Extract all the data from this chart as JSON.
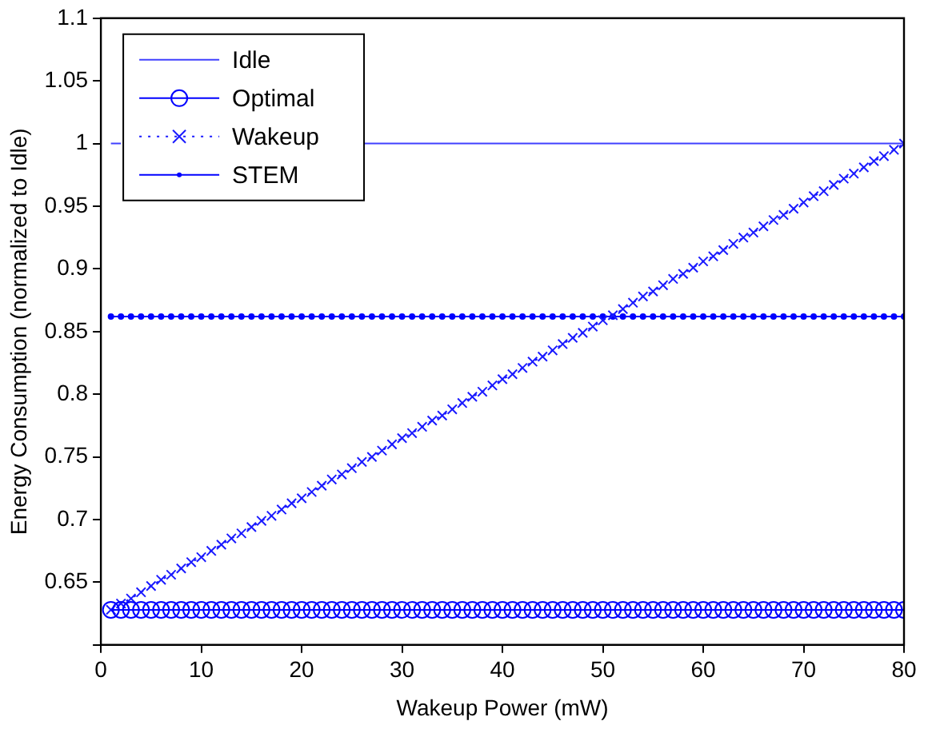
{
  "chart_data": {
    "type": "line",
    "xlabel": "Wakeup Power (mW)",
    "ylabel": "Energy Consumption (normalized to Idle)",
    "x": [
      1,
      2,
      3,
      4,
      5,
      6,
      7,
      8,
      9,
      10,
      11,
      12,
      13,
      14,
      15,
      16,
      17,
      18,
      19,
      20,
      21,
      22,
      23,
      24,
      25,
      26,
      27,
      28,
      29,
      30,
      31,
      32,
      33,
      34,
      35,
      36,
      37,
      38,
      39,
      40,
      41,
      42,
      43,
      44,
      45,
      46,
      47,
      48,
      49,
      50,
      51,
      52,
      53,
      54,
      55,
      56,
      57,
      58,
      59,
      60,
      61,
      62,
      63,
      64,
      65,
      66,
      67,
      68,
      69,
      70,
      71,
      72,
      73,
      74,
      75,
      76,
      77,
      78,
      79,
      80
    ],
    "xlim": [
      0,
      80
    ],
    "xticks": [
      0,
      10,
      20,
      30,
      40,
      50,
      60,
      70,
      80
    ],
    "ylim": [
      0.6,
      1.1
    ],
    "yticks": [
      {
        "value": 0.6,
        "label": null
      },
      0.65,
      0.7,
      0.75,
      0.8,
      0.85,
      0.9,
      0.95,
      1,
      1.05,
      1.1
    ],
    "grid": false,
    "legend": "top left",
    "series": [
      {
        "name": "Idle",
        "color": "#4040ff",
        "marker": "none",
        "line_style": "solid",
        "values": [
          1,
          1,
          null,
          null,
          null,
          null,
          null,
          null,
          null,
          null,
          null,
          null,
          null,
          null,
          null,
          null,
          null,
          null,
          null,
          null,
          null,
          null,
          null,
          null,
          null,
          1,
          1,
          1,
          1,
          1,
          1,
          1,
          1,
          1,
          1,
          1,
          1,
          1,
          1,
          1,
          1,
          1,
          1,
          1,
          1,
          1,
          1,
          1,
          1,
          1,
          1,
          1,
          1,
          1,
          1,
          1,
          1,
          1,
          1,
          1,
          1,
          1,
          1,
          1,
          1,
          1,
          1,
          1,
          1,
          1,
          1,
          1,
          1,
          1,
          1,
          1,
          1,
          1,
          1,
          1
        ]
      },
      {
        "name": "Optimal",
        "color": "#0000ff",
        "marker": "circle",
        "line_style": "solid",
        "values": [
          0.628,
          0.628,
          0.628,
          0.628,
          0.628,
          0.628,
          0.628,
          0.628,
          0.628,
          0.628,
          0.628,
          0.628,
          0.628,
          0.628,
          0.628,
          0.628,
          0.628,
          0.628,
          0.628,
          0.628,
          0.628,
          0.628,
          0.628,
          0.628,
          0.628,
          0.628,
          0.628,
          0.628,
          0.628,
          0.628,
          0.628,
          0.628,
          0.628,
          0.628,
          0.628,
          0.628,
          0.628,
          0.628,
          0.628,
          0.628,
          0.628,
          0.628,
          0.628,
          0.628,
          0.628,
          0.628,
          0.628,
          0.628,
          0.628,
          0.628,
          0.628,
          0.628,
          0.628,
          0.628,
          0.628,
          0.628,
          0.628,
          0.628,
          0.628,
          0.628,
          0.628,
          0.628,
          0.628,
          0.628,
          0.628,
          0.628,
          0.628,
          0.628,
          0.628,
          0.628,
          0.628,
          0.628,
          0.628,
          0.628,
          0.628,
          0.628,
          0.628,
          0.628,
          0.628,
          0.628
        ]
      },
      {
        "name": "Wakeup",
        "color": "#1a1aff",
        "marker": "cross",
        "line_style": "dotted",
        "values": [
          0.628,
          0.633,
          0.637,
          0.642,
          0.647,
          0.652,
          0.656,
          0.661,
          0.666,
          0.67,
          0.675,
          0.68,
          0.685,
          0.689,
          0.694,
          0.699,
          0.703,
          0.708,
          0.713,
          0.717,
          0.722,
          0.727,
          0.732,
          0.736,
          0.741,
          0.746,
          0.75,
          0.755,
          0.76,
          0.765,
          0.769,
          0.774,
          0.779,
          0.783,
          0.788,
          0.793,
          0.798,
          0.802,
          0.807,
          0.812,
          0.816,
          0.821,
          0.826,
          0.83,
          0.835,
          0.84,
          0.845,
          0.849,
          0.854,
          0.859,
          0.863,
          0.868,
          0.873,
          0.878,
          0.882,
          0.887,
          0.892,
          0.896,
          0.901,
          0.906,
          0.91,
          0.915,
          0.92,
          0.925,
          0.929,
          0.934,
          0.939,
          0.943,
          0.948,
          0.953,
          0.958,
          0.962,
          0.967,
          0.972,
          0.976,
          0.981,
          0.986,
          0.99,
          0.995,
          1.0
        ]
      },
      {
        "name": "STEM",
        "color": "#0000ff",
        "marker": "dot",
        "line_style": "solid",
        "values": [
          0.862,
          0.862,
          0.862,
          0.862,
          0.862,
          0.862,
          0.862,
          0.862,
          0.862,
          0.862,
          0.862,
          0.862,
          0.862,
          0.862,
          0.862,
          0.862,
          0.862,
          0.862,
          0.862,
          0.862,
          0.862,
          0.862,
          0.862,
          0.862,
          0.862,
          0.862,
          0.862,
          0.862,
          0.862,
          0.862,
          0.862,
          0.862,
          0.862,
          0.862,
          0.862,
          0.862,
          0.862,
          0.862,
          0.862,
          0.862,
          0.862,
          0.862,
          0.862,
          0.862,
          0.862,
          0.862,
          0.862,
          0.862,
          0.862,
          0.862,
          0.862,
          0.862,
          0.862,
          0.862,
          0.862,
          0.862,
          0.862,
          0.862,
          0.862,
          0.862,
          0.862,
          0.862,
          0.862,
          0.862,
          0.862,
          0.862,
          0.862,
          0.862,
          0.862,
          0.862,
          0.862,
          0.862,
          0.862,
          0.862,
          0.862,
          0.862,
          0.862,
          0.862,
          0.862,
          0.862
        ]
      }
    ]
  }
}
